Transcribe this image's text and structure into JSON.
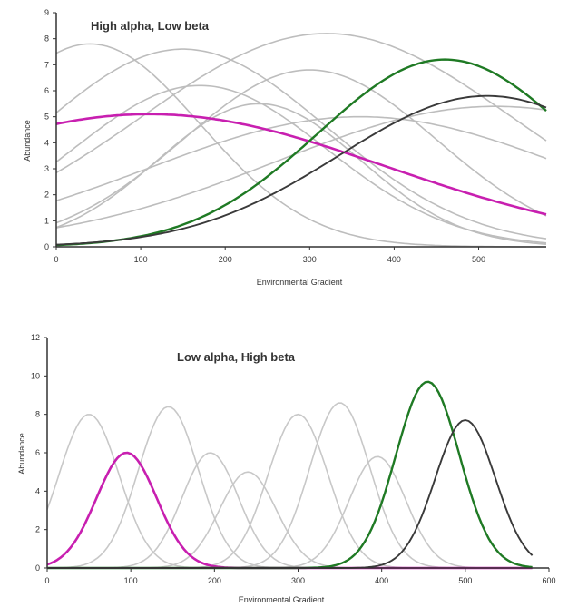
{
  "chart_data": [
    {
      "type": "line",
      "title": "High alpha, Low beta",
      "xlabel": "Environmental Gradient",
      "ylabel": "Abundance",
      "xlim": [
        0,
        580
      ],
      "ylim": [
        0,
        9
      ],
      "x_ticks": [
        "0",
        "100",
        "200",
        "300",
        "400",
        "500"
      ],
      "y_ticks": [
        "0",
        "1",
        "2",
        "3",
        "4",
        "5",
        "6",
        "7",
        "8",
        "9"
      ],
      "grid": false,
      "colors": {
        "gray": "#bdbdbd",
        "magenta": "#c81fb0",
        "green": "#1f7a24",
        "dark": "#3a3a3a"
      },
      "series": [
        {
          "style": "gray",
          "peak_x": 40,
          "peak_y": 7.8,
          "width": 130
        },
        {
          "style": "gray",
          "peak_x": 150,
          "peak_y": 7.6,
          "width": 170
        },
        {
          "style": "gray",
          "peak_x": 170,
          "peak_y": 6.2,
          "width": 150
        },
        {
          "style": "gray",
          "peak_x": 320,
          "peak_y": 8.2,
          "width": 220
        },
        {
          "style": "gray",
          "peak_x": 300,
          "peak_y": 6.8,
          "width": 150
        },
        {
          "style": "gray",
          "peak_x": 240,
          "peak_y": 5.5,
          "width": 120
        },
        {
          "style": "gray",
          "peak_x": 360,
          "peak_y": 5.0,
          "width": 250
        },
        {
          "style": "gray",
          "peak_x": 520,
          "peak_y": 5.4,
          "width": 260
        },
        {
          "style": "magenta",
          "peak_x": 110,
          "peak_y": 5.1,
          "width": 280
        },
        {
          "style": "green",
          "peak_x": 460,
          "peak_y": 7.2,
          "width": 150
        },
        {
          "style": "dark",
          "peak_x": 510,
          "peak_y": 5.8,
          "width": 175
        }
      ]
    },
    {
      "type": "line",
      "title": "Low alpha, High beta",
      "xlabel": "Environmental Gradient",
      "ylabel": "Abundance",
      "xlim": [
        0,
        600
      ],
      "ylim": [
        0,
        12
      ],
      "x_ticks": [
        "0",
        "100",
        "200",
        "300",
        "400",
        "500",
        "600"
      ],
      "y_ticks": [
        "0",
        "2",
        "4",
        "6",
        "8",
        "10",
        "12"
      ],
      "grid": false,
      "colors": {
        "gray": "#c8c8c8",
        "magenta": "#c81fb0",
        "green": "#1f7a24",
        "dark": "#3a3a3a"
      },
      "series": [
        {
          "style": "gray",
          "peak_x": 50,
          "peak_y": 8.0,
          "width": 36
        },
        {
          "style": "gray",
          "peak_x": 145,
          "peak_y": 8.4,
          "width": 36
        },
        {
          "style": "gray",
          "peak_x": 195,
          "peak_y": 6.0,
          "width": 34
        },
        {
          "style": "gray",
          "peak_x": 240,
          "peak_y": 5.0,
          "width": 34
        },
        {
          "style": "gray",
          "peak_x": 300,
          "peak_y": 8.0,
          "width": 36
        },
        {
          "style": "gray",
          "peak_x": 350,
          "peak_y": 8.6,
          "width": 36
        },
        {
          "style": "gray",
          "peak_x": 395,
          "peak_y": 5.8,
          "width": 34
        },
        {
          "style": "magenta",
          "peak_x": 95,
          "peak_y": 6.0,
          "width": 36
        },
        {
          "style": "green",
          "peak_x": 455,
          "peak_y": 9.7,
          "width": 38
        },
        {
          "style": "dark",
          "peak_x": 500,
          "peak_y": 7.7,
          "width": 36
        }
      ]
    }
  ]
}
